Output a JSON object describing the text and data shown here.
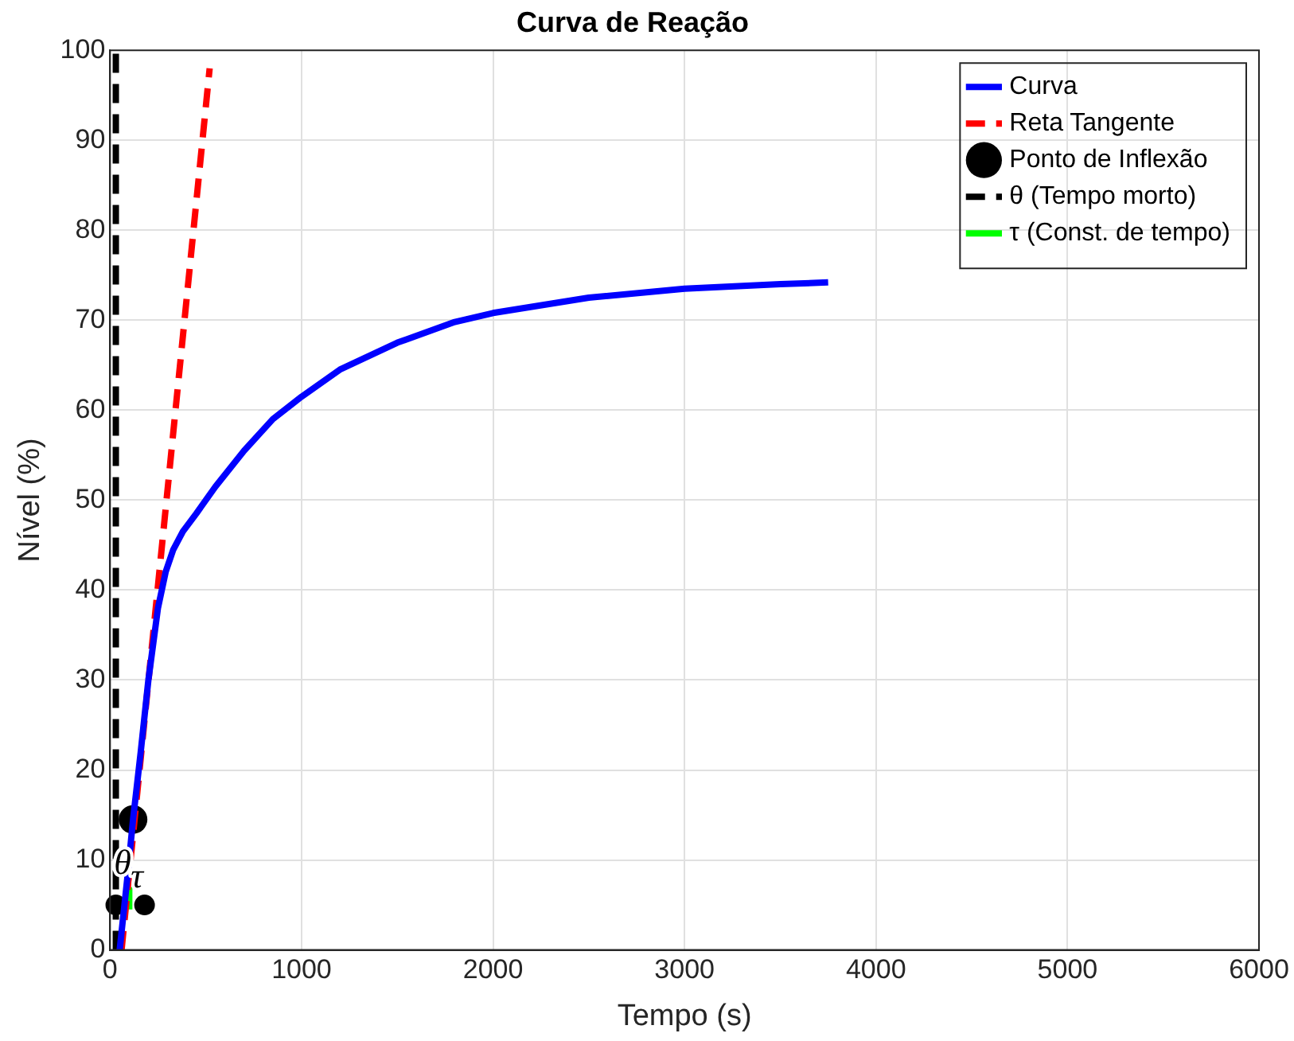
{
  "chart_data": {
    "type": "line",
    "title": "Curva de Reação",
    "xlabel": "Tempo (s)",
    "ylabel": "Nível (%)",
    "xlim": [
      0,
      6000
    ],
    "xticks": [
      0,
      1000,
      2000,
      3000,
      4000,
      5000,
      6000
    ],
    "ylim": [
      0,
      100
    ],
    "yticks": [
      0,
      10,
      20,
      30,
      40,
      50,
      60,
      70,
      80,
      90,
      100
    ],
    "grid": true,
    "legend": "top right",
    "marker": "none",
    "series": [
      {
        "name": "Curva",
        "color": "#0000ff",
        "type": "line",
        "line_style": "solid",
        "x": [
          50,
          90,
          120,
          160,
          200,
          250,
          290,
          330,
          380,
          450,
          550,
          700,
          850,
          1000,
          1200,
          1500,
          1800,
          2000,
          2500,
          3000,
          3500,
          3750
        ],
        "values": [
          0,
          8,
          14.5,
          22,
          30,
          38,
          42,
          44.5,
          46.5,
          48.5,
          51.5,
          55.5,
          59,
          61.5,
          64.5,
          67.5,
          69.8,
          70.8,
          72.5,
          73.5,
          74,
          74.2
        ]
      },
      {
        "name": "Reta Tangente",
        "color": "#ff0000",
        "type": "line",
        "line_style": "dashed",
        "x": [
          60,
          520
        ],
        "values": [
          0,
          98
        ]
      },
      {
        "name": "Ponto de Inflexão",
        "color": "#000000",
        "type": "scatter",
        "marker": "circle",
        "x": [
          120
        ],
        "values": [
          14.5
        ]
      },
      {
        "name": "θ (Tempo morto)",
        "color": "#000000",
        "type": "line",
        "line_style": "dashed",
        "x": [
          30,
          30
        ],
        "values": [
          0,
          100
        ]
      },
      {
        "name": "τ (Const. de tempo)",
        "color": "#00ff00",
        "type": "line",
        "line_style": "solid",
        "x": [
          100,
          100
        ],
        "values": [
          4.5,
          7
        ]
      },
      {
        "color": "#000000",
        "type": "scatter",
        "marker": "circle",
        "x": [
          30,
          180
        ],
        "values": [
          5,
          5
        ]
      }
    ],
    "annotations": [
      {
        "text": "θ",
        "x": 65,
        "y": 9.5
      },
      {
        "text": "τ",
        "x": 140,
        "y": 8
      }
    ]
  }
}
